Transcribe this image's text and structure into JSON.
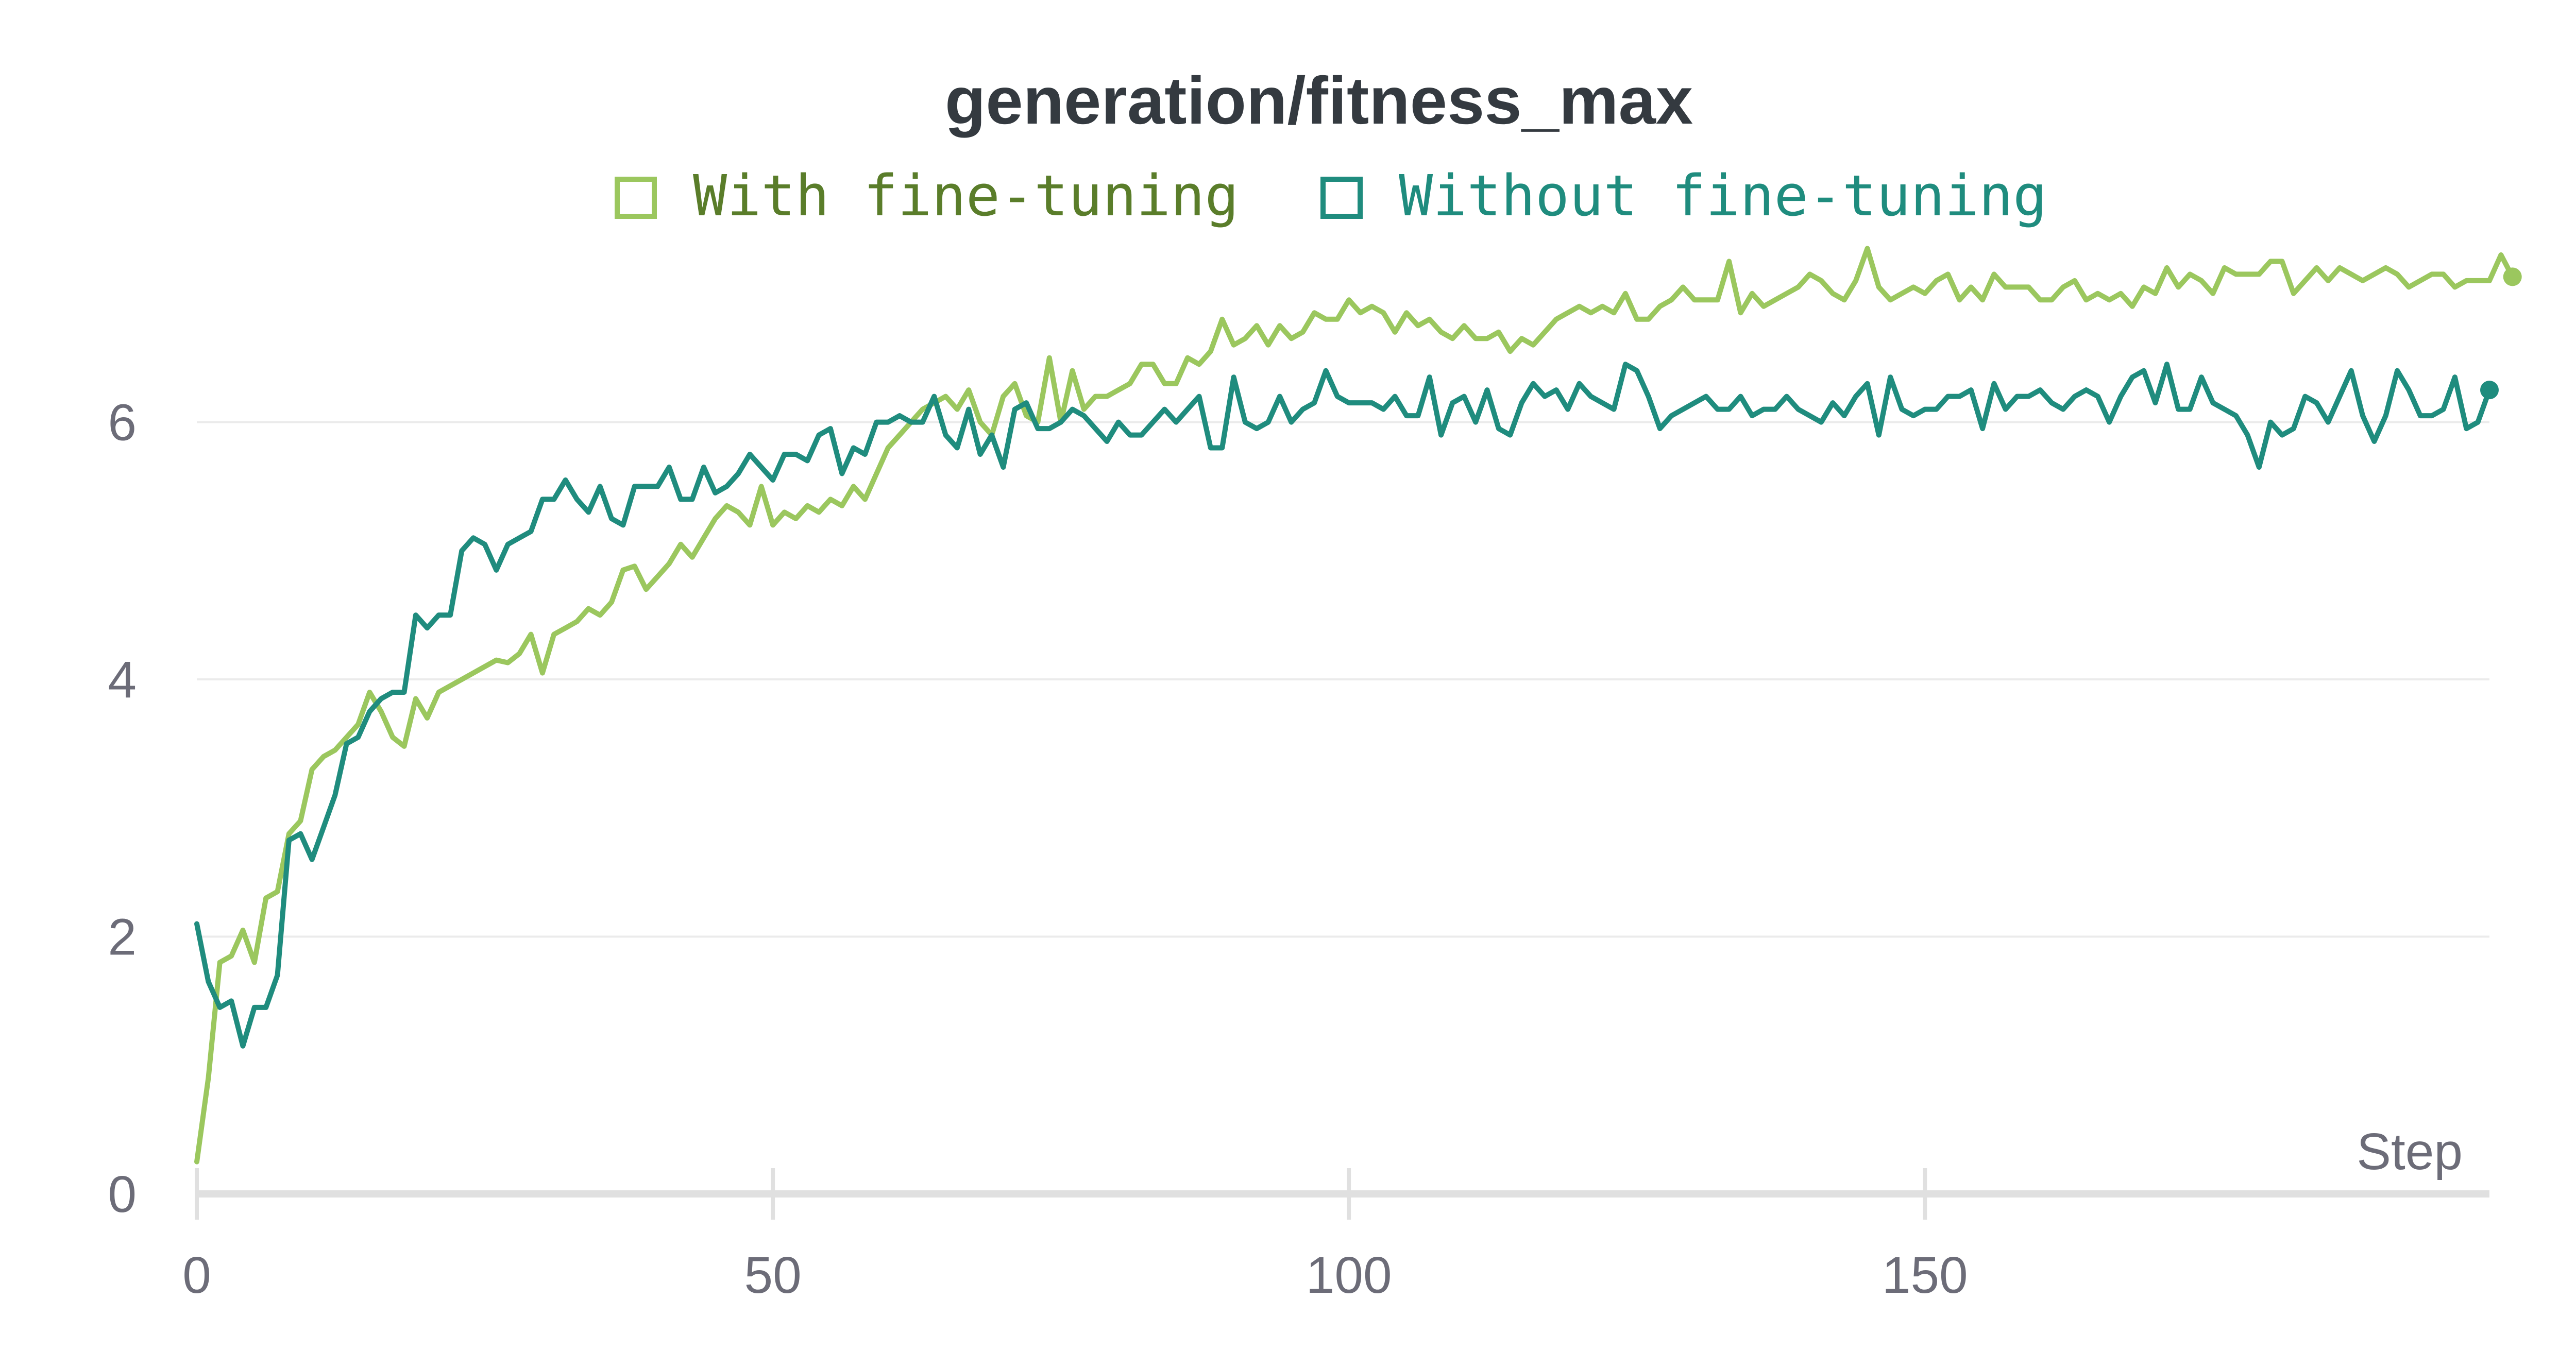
{
  "chart_data": {
    "type": "line",
    "title": "generation/fitness_max",
    "xlabel": "Step",
    "ylabel": "",
    "xlim": [
      0,
      199
    ],
    "ylim": [
      0,
      7.6
    ],
    "xticks": [
      0,
      50,
      100,
      150
    ],
    "yticks": [
      0,
      2,
      4,
      6
    ],
    "grid": "horizontal",
    "legend_position": "top-center",
    "series": [
      {
        "name": "With fine-tuning",
        "color": "#9bc75e",
        "text_color": "#5a7d2a",
        "x_start": 0,
        "values": [
          0.25,
          0.9,
          1.8,
          1.85,
          2.05,
          1.8,
          2.3,
          2.35,
          2.8,
          2.9,
          3.3,
          3.4,
          3.45,
          3.55,
          3.65,
          3.9,
          3.75,
          3.55,
          3.48,
          3.85,
          3.7,
          3.9,
          3.95,
          4.0,
          4.05,
          4.1,
          4.15,
          4.13,
          4.2,
          4.35,
          4.05,
          4.35,
          4.4,
          4.45,
          4.55,
          4.5,
          4.6,
          4.85,
          4.88,
          4.7,
          4.8,
          4.9,
          5.05,
          4.95,
          5.1,
          5.25,
          5.35,
          5.3,
          5.2,
          5.5,
          5.2,
          5.3,
          5.25,
          5.35,
          5.3,
          5.4,
          5.35,
          5.5,
          5.4,
          5.6,
          5.8,
          5.9,
          6.0,
          6.1,
          6.15,
          6.2,
          6.1,
          6.25,
          6.0,
          5.9,
          6.2,
          6.3,
          6.05,
          6.0,
          6.5,
          6.0,
          6.4,
          6.1,
          6.2,
          6.2,
          6.25,
          6.3,
          6.45,
          6.45,
          6.3,
          6.3,
          6.5,
          6.45,
          6.55,
          6.8,
          6.6,
          6.65,
          6.75,
          6.6,
          6.75,
          6.65,
          6.7,
          6.85,
          6.8,
          6.8,
          6.95,
          6.85,
          6.9,
          6.85,
          6.7,
          6.85,
          6.75,
          6.8,
          6.7,
          6.65,
          6.75,
          6.65,
          6.65,
          6.7,
          6.55,
          6.65,
          6.6,
          6.7,
          6.8,
          6.85,
          6.9,
          6.85,
          6.9,
          6.85,
          7.0,
          6.8,
          6.8,
          6.9,
          6.95,
          7.05,
          6.95,
          6.95,
          6.95,
          7.25,
          6.85,
          7.0,
          6.9,
          6.95,
          7.0,
          7.05,
          7.15,
          7.1,
          7.0,
          6.95,
          7.1,
          7.35,
          7.05,
          6.95,
          7.0,
          7.05,
          7.0,
          7.1,
          7.15,
          6.95,
          7.05,
          6.95,
          7.15,
          7.05,
          7.05,
          7.05,
          6.95,
          6.95,
          7.05,
          7.1,
          6.95,
          7.0,
          6.95,
          7.0,
          6.9,
          7.05,
          7.0,
          7.2,
          7.05,
          7.15,
          7.1,
          7.0,
          7.2,
          7.15,
          7.15,
          7.15,
          7.25,
          7.25,
          7.0,
          7.1,
          7.2,
          7.1,
          7.2,
          7.15,
          7.1,
          7.15,
          7.2,
          7.15,
          7.05,
          7.1,
          7.15,
          7.15,
          7.05,
          7.1,
          7.1,
          7.1,
          7.3,
          7.13
        ]
      },
      {
        "name": "Without fine-tuning",
        "color": "#1f8c7e",
        "text_color": "#1f8c7e",
        "x_start": 0,
        "values": [
          2.1,
          1.65,
          1.45,
          1.5,
          1.15,
          1.45,
          1.45,
          1.7,
          2.75,
          2.8,
          2.6,
          2.85,
          3.1,
          3.5,
          3.55,
          3.75,
          3.85,
          3.9,
          3.9,
          4.5,
          4.4,
          4.5,
          4.5,
          5.0,
          5.1,
          5.05,
          4.85,
          5.05,
          5.1,
          5.15,
          5.4,
          5.4,
          5.55,
          5.4,
          5.3,
          5.5,
          5.25,
          5.2,
          5.5,
          5.5,
          5.5,
          5.65,
          5.4,
          5.4,
          5.65,
          5.45,
          5.5,
          5.6,
          5.75,
          5.65,
          5.55,
          5.75,
          5.75,
          5.7,
          5.9,
          5.95,
          5.6,
          5.8,
          5.75,
          6.0,
          6.0,
          6.05,
          6.0,
          6.0,
          6.2,
          5.9,
          5.8,
          6.1,
          5.75,
          5.9,
          5.65,
          6.1,
          6.15,
          5.95,
          5.95,
          6.0,
          6.1,
          6.05,
          5.95,
          5.85,
          6.0,
          5.9,
          5.9,
          6.0,
          6.1,
          6.0,
          6.1,
          6.2,
          5.8,
          5.8,
          6.35,
          6.0,
          5.95,
          6.0,
          6.2,
          6.0,
          6.1,
          6.15,
          6.4,
          6.2,
          6.15,
          6.15,
          6.15,
          6.1,
          6.2,
          6.05,
          6.05,
          6.35,
          5.9,
          6.15,
          6.2,
          6.0,
          6.25,
          5.95,
          5.9,
          6.15,
          6.3,
          6.2,
          6.25,
          6.1,
          6.3,
          6.2,
          6.15,
          6.1,
          6.45,
          6.4,
          6.2,
          5.95,
          6.05,
          6.1,
          6.15,
          6.2,
          6.1,
          6.1,
          6.2,
          6.05,
          6.1,
          6.1,
          6.2,
          6.1,
          6.05,
          6.0,
          6.15,
          6.05,
          6.2,
          6.3,
          5.9,
          6.35,
          6.1,
          6.05,
          6.1,
          6.1,
          6.2,
          6.2,
          6.25,
          5.95,
          6.3,
          6.1,
          6.2,
          6.2,
          6.25,
          6.15,
          6.1,
          6.2,
          6.25,
          6.2,
          6.0,
          6.2,
          6.35,
          6.4,
          6.15,
          6.45,
          6.1,
          6.1,
          6.35,
          6.15,
          6.1,
          6.05,
          5.9,
          5.65,
          6.0,
          5.9,
          5.95,
          6.2,
          6.15,
          6.0,
          6.2,
          6.4,
          6.05,
          5.85,
          6.05,
          6.4,
          6.25,
          6.05,
          6.05,
          6.1,
          6.35,
          5.95,
          6.0,
          6.25
        ]
      }
    ]
  }
}
